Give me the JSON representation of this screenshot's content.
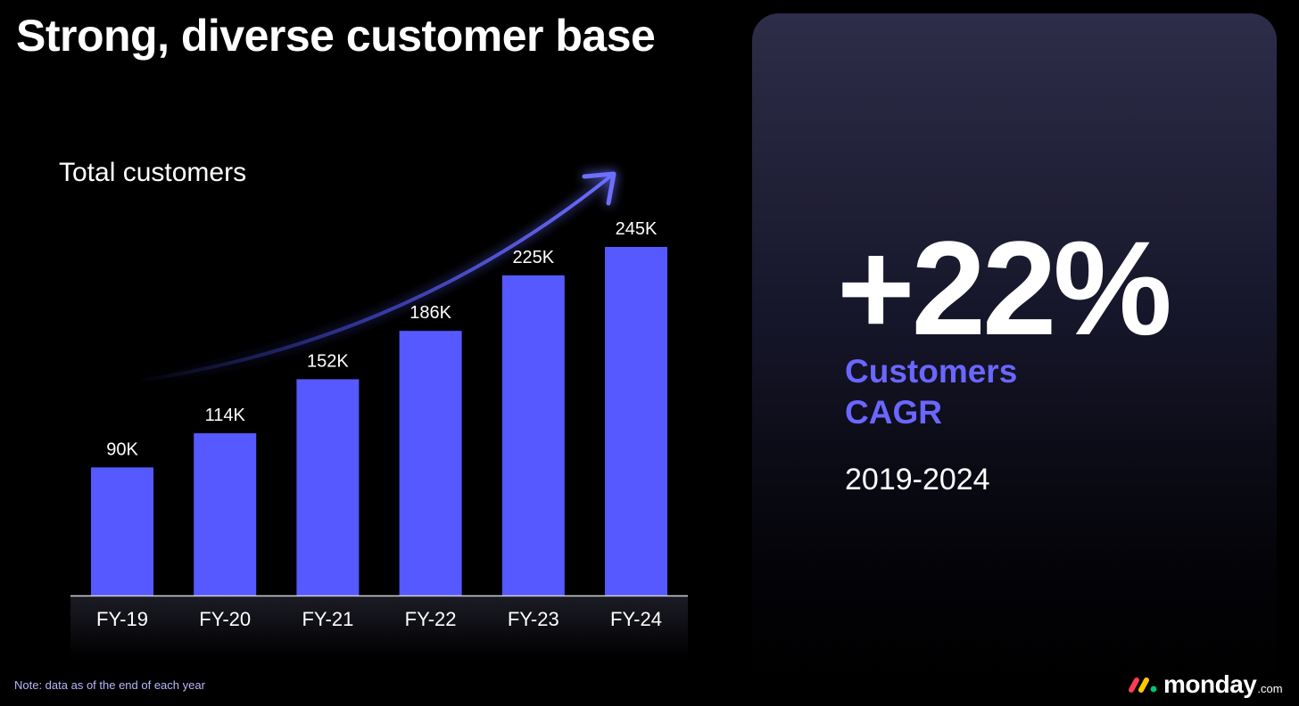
{
  "slide": {
    "title": "Strong, diverse customer base",
    "note": "Note: data as of the end of each year"
  },
  "highlight": {
    "value": "+22%",
    "label_line1": "Customers",
    "label_line2": "CAGR",
    "period": "2019-2024"
  },
  "logo": {
    "word": "monday",
    "suffix": ".com",
    "colors": [
      "#ff3d57",
      "#ffcb00",
      "#00ca72"
    ]
  },
  "colors": {
    "bar": "#5559ff",
    "accent": "#6b66ff",
    "background": "#000000"
  },
  "chart_data": {
    "type": "bar",
    "title": "Total customers",
    "categories": [
      "FY-19",
      "FY-20",
      "FY-21",
      "FY-22",
      "FY-23",
      "FY-24"
    ],
    "values": [
      90,
      114,
      152,
      186,
      225,
      245
    ],
    "data_labels": [
      "90K",
      "114K",
      "152K",
      "186K",
      "225K",
      "245K"
    ],
    "unit": "K",
    "ylim": [
      0,
      245
    ],
    "grid": false,
    "legend": "none",
    "annotation": "growth-arrow"
  }
}
